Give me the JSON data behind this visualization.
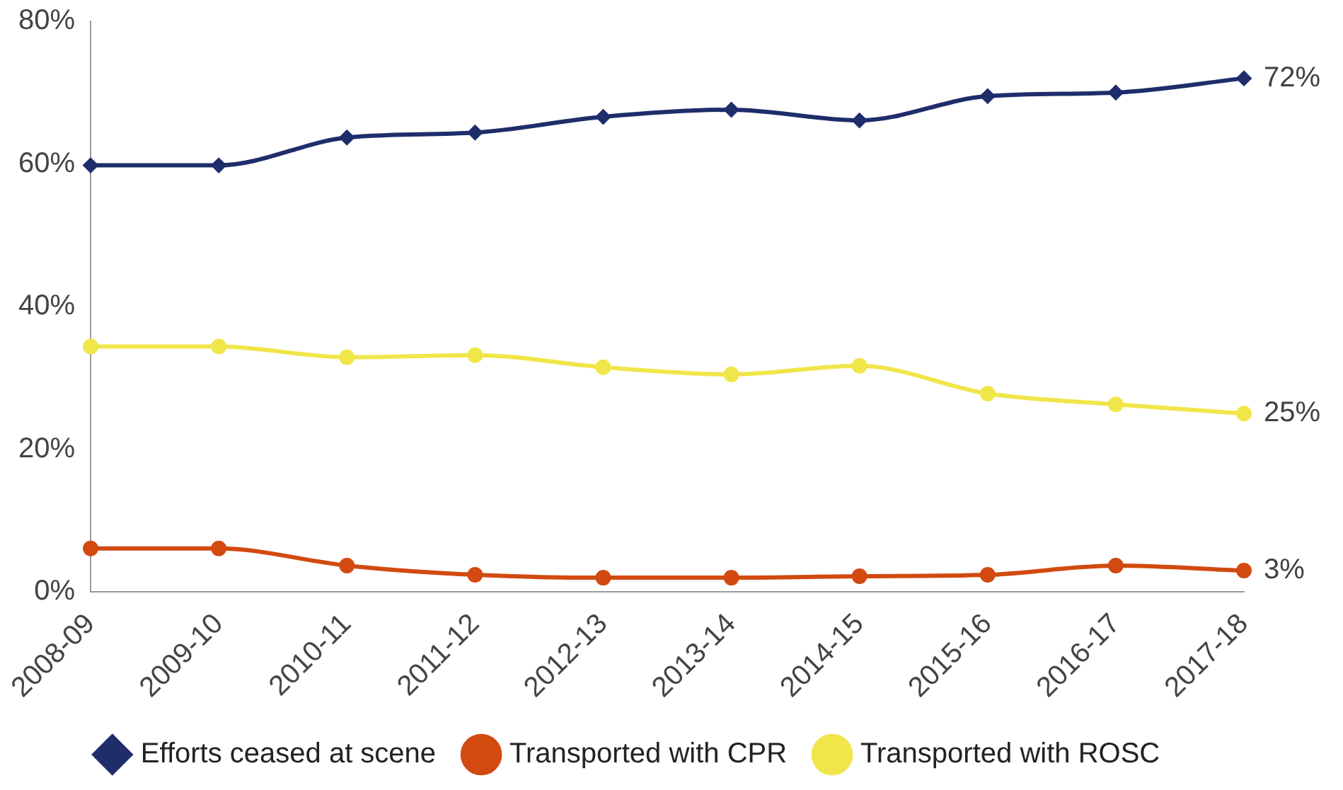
{
  "chart_data": {
    "type": "line",
    "categories": [
      "2008-09",
      "2009-10",
      "2010-11",
      "2011-12",
      "2012-13",
      "2013-14",
      "2014-15",
      "2015-16",
      "2016-17",
      "2017-18"
    ],
    "series": [
      {
        "name": "Efforts ceased at scene",
        "color": "#1f2d6b",
        "marker": "diamond",
        "values": [
          59.8,
          59.8,
          63.7,
          64.4,
          66.6,
          67.6,
          66.1,
          69.5,
          70,
          72
        ]
      },
      {
        "name": "Transported with CPR",
        "color": "#d24a10",
        "marker": "circle",
        "values": [
          6.1,
          6.1,
          3.7,
          2.4,
          2,
          2,
          2.2,
          2.4,
          3.7,
          3
        ]
      },
      {
        "name": "Transported with ROSC",
        "color": "#f0e64a",
        "marker": "circle",
        "values": [
          34.4,
          34.4,
          32.9,
          33.2,
          31.5,
          30.5,
          31.7,
          27.8,
          26.3,
          25
        ]
      }
    ],
    "ylim": [
      0,
      80
    ],
    "yticks": [
      {
        "value": 0,
        "label": "0%"
      },
      {
        "value": 20,
        "label": "20%"
      },
      {
        "value": 40,
        "label": "40%"
      },
      {
        "value": 60,
        "label": "60%"
      },
      {
        "value": 80,
        "label": "80%"
      }
    ],
    "annotations": [
      {
        "text": "72%",
        "x": "2017-18",
        "y": 72
      },
      {
        "text": "25%",
        "x": "2017-18",
        "y": 25
      },
      {
        "text": "3%",
        "x": "2017-18",
        "y": 3
      }
    ],
    "grid": false,
    "legend": "bottom"
  }
}
